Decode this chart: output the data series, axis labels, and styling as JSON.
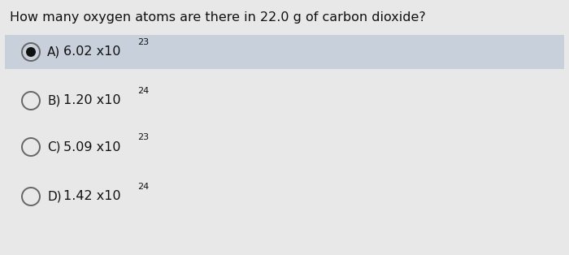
{
  "question": "How many oxygen atoms are there in 22.0 g of carbon dioxide?",
  "options": [
    {
      "letter": "A",
      "text": "6.02 x10",
      "superscript": "23",
      "selected": true
    },
    {
      "letter": "B",
      "text": "1.20 x10",
      "superscript": "24",
      "selected": false
    },
    {
      "letter": "C",
      "text": "5.09 x10",
      "superscript": "23",
      "selected": false
    },
    {
      "letter": "D",
      "text": "1.42 x10",
      "superscript": "24",
      "selected": false
    }
  ],
  "bg_color": "#dcdcdc",
  "page_color": "#e8e8e8",
  "selected_bg": "#c8d0dc",
  "circle_color": "#666666",
  "selected_dot_color": "#111111",
  "question_fontsize": 11.5,
  "option_fontsize": 11.5,
  "letter_fontsize": 11.0,
  "sup_fontsize": 8.0
}
